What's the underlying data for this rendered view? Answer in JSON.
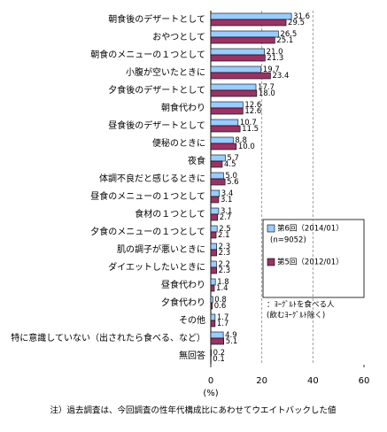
{
  "chart_data": {
    "type": "bar",
    "orientation": "horizontal",
    "categories": [
      "朝食後のデザートとして",
      "おやつとして",
      "朝食のメニューの１つとして",
      "小腹が空いたときに",
      "夕食後のデザートとして",
      "朝食代わり",
      "昼食後のデザートとして",
      "便秘のときに",
      "夜食",
      "体調不良だと感じるときに",
      "昼食のメニューの１つとして",
      "食材の１つとして",
      "夕食のメニューの１つとして",
      "肌の調子が悪いときに",
      "ダイエットしたいときに",
      "昼食代わり",
      "夕食代わり",
      "その他",
      "特に意識していない（出されたら食べる、など）",
      "無回答"
    ],
    "series": [
      {
        "name": "第6回（2014/01）",
        "color": "#99ccff",
        "values": [
          31.6,
          26.5,
          21.0,
          19.7,
          17.7,
          12.6,
          10.7,
          8.8,
          5.7,
          5.0,
          3.4,
          3.1,
          2.5,
          2.3,
          2.2,
          1.8,
          0.8,
          1.7,
          4.9,
          0.2
        ],
        "value_labels": [
          "31.6",
          "26.5",
          "21.0",
          "19.7",
          "17.7",
          "12.6",
          "10.7",
          "8.8",
          "5.7",
          "5.0",
          "3.4",
          "3.1",
          "2.5",
          "2.3",
          "2.2",
          "1.8",
          "0.8",
          "1.7",
          "4.9",
          "0.2"
        ]
      },
      {
        "name": "第5回（2012/01）",
        "color": "#993366",
        "values": [
          29.5,
          25.1,
          21.3,
          23.4,
          18.0,
          12.6,
          11.5,
          10.0,
          4.5,
          5.6,
          3.1,
          2.7,
          2.1,
          2.3,
          2.3,
          1.4,
          0.6,
          1.7,
          5.1,
          0.1
        ],
        "value_labels": [
          "29.5",
          "25.1",
          "21.3",
          "23.4",
          "18.0",
          "12.6",
          "11.5",
          "10.0",
          "4.5",
          "5.6",
          "3.1",
          "2.7",
          "2.1",
          "2.3",
          "2.3",
          "1.4",
          "0.6",
          "1.7",
          "5.1",
          "0.1"
        ]
      }
    ],
    "legend_note": "(n=9052)",
    "annotation": [
      "：ﾖｰｸﾞﾙﾄを食べる人",
      "(飲むﾖｰｸﾞﾙﾄ除く)"
    ],
    "xlabel": "(%)",
    "xlim": [
      0,
      60
    ],
    "xticks": [
      0,
      20,
      40,
      60
    ],
    "grid": true,
    "footnote": "注）過去調査は、今回調査の性年代構成比にあわせてウエイトバックした値"
  }
}
